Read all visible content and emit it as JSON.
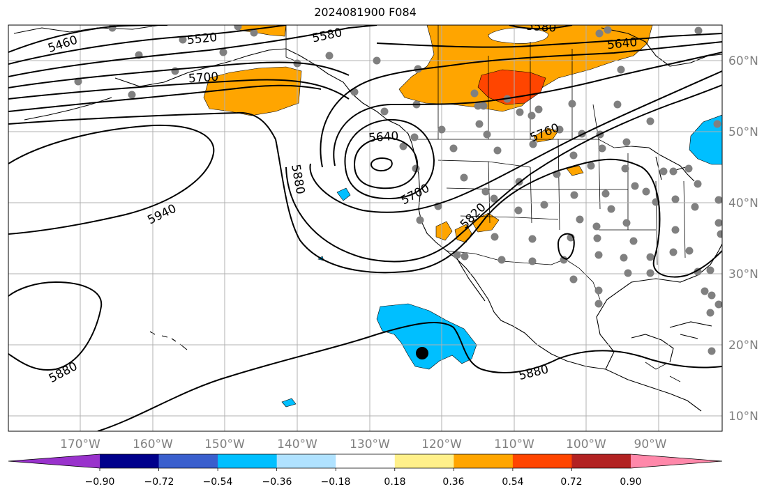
{
  "title": "2024081900 F084",
  "map": {
    "lon_labels": [
      "170°W",
      "160°W",
      "150°W",
      "140°W",
      "130°W",
      "120°W",
      "110°W",
      "100°W",
      "90°W"
    ],
    "lat_labels": [
      "60°N",
      "50°N",
      "40°N",
      "30°N",
      "20°N",
      "10°N"
    ],
    "contour_labels": [
      "5460",
      "5520",
      "5580",
      "5580",
      "5640",
      "5640",
      "5700",
      "5700",
      "5760",
      "5820",
      "5880",
      "5880",
      "5880",
      "5940"
    ],
    "tick_label_color": "#808080",
    "grid_color": "#b0b0b0"
  },
  "colorbar": {
    "colors": [
      "#9932cc",
      "#00008b",
      "#3a5fcd",
      "#00bfff",
      "#b0e2ff",
      "#ffffff",
      "#fff08a",
      "#ffa500",
      "#ff4500",
      "#b22222",
      "#ff88aa"
    ],
    "tick_labels": [
      "−0.90",
      "−0.72",
      "−0.54",
      "−0.36",
      "−0.18",
      "0.18",
      "0.36",
      "0.54",
      "0.72",
      "0.90"
    ]
  }
}
